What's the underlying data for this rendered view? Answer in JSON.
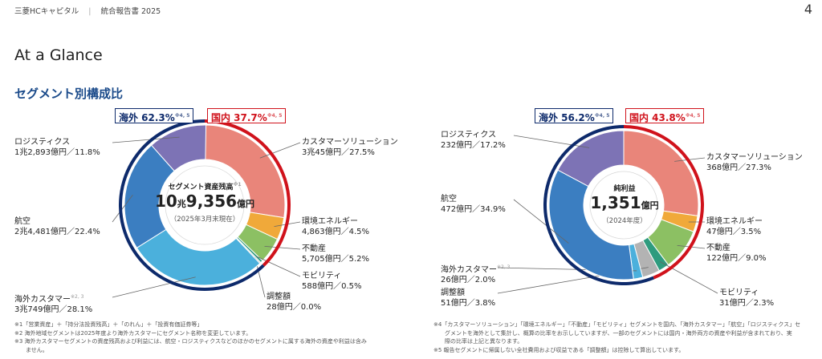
{
  "header": {
    "company": "三菱HCキャピタル",
    "report": "統合報告書 2025",
    "page": "4"
  },
  "page_title": "At a Glance",
  "section_title": "セグメント別構成比",
  "chart_data": [
    {
      "type": "pie",
      "title": "セグメント資産残高",
      "center_title_note": "※1",
      "center_value_main": "10",
      "center_value_unit1": "兆",
      "center_value_rest": "9,356",
      "center_value_unit2": "億円",
      "center_sub": "（2025年3月末現在）",
      "outer_ring": [
        {
          "name": "海外",
          "value": 62.3,
          "color": "#0d2a6b",
          "note": "※4, 5"
        },
        {
          "name": "国内",
          "value": 37.7,
          "color": "#d0121b",
          "note": "※4, 5"
        }
      ],
      "tag_overseas": "海外 62.3%",
      "tag_domestic": "国内 37.7%",
      "slices": [
        {
          "name": "カスタマーソリューション",
          "amount": "3兆45億円",
          "pct": 27.5,
          "pct_label": "27.5%",
          "color": "#e9857a"
        },
        {
          "name": "環境エネルギー",
          "amount": "4,863億円",
          "pct": 4.5,
          "pct_label": "4.5%",
          "color": "#f0a93a"
        },
        {
          "name": "不動産",
          "amount": "5,705億円",
          "pct": 5.2,
          "pct_label": "5.2%",
          "color": "#8cc063"
        },
        {
          "name": "モビリティ",
          "amount": "588億円",
          "pct": 0.5,
          "pct_label": "0.5%",
          "color": "#2e9b7e"
        },
        {
          "name": "調整額",
          "amount": "28億円",
          "pct": 0.0,
          "pct_label": "0.0%",
          "color": "#b3b3b3"
        },
        {
          "name": "海外カスタマー",
          "note": "※2, 3",
          "amount": "3兆749億円",
          "pct": 28.1,
          "pct_label": "28.1%",
          "color": "#4bb0dc"
        },
        {
          "name": "航空",
          "amount": "2兆4,481億円",
          "pct": 22.4,
          "pct_label": "22.4%",
          "color": "#3b7ec1"
        },
        {
          "name": "ロジスティクス",
          "amount": "1兆2,893億円",
          "pct": 11.8,
          "pct_label": "11.8%",
          "color": "#7d73b5"
        }
      ]
    },
    {
      "type": "pie",
      "title": "純利益",
      "center_value_main": "1,351",
      "center_value_unit2": "億円",
      "center_sub": "（2024年度）",
      "outer_ring": [
        {
          "name": "海外",
          "value": 56.2,
          "color": "#0d2a6b",
          "note": "※4, 5"
        },
        {
          "name": "国内",
          "value": 43.8,
          "color": "#d0121b",
          "note": "※4, 5"
        }
      ],
      "tag_overseas": "海外 56.2%",
      "tag_domestic": "国内 43.8%",
      "slices": [
        {
          "name": "カスタマーソリューション",
          "amount": "368億円",
          "pct": 27.3,
          "pct_label": "27.3%",
          "color": "#e9857a"
        },
        {
          "name": "環境エネルギー",
          "amount": "47億円",
          "pct": 3.5,
          "pct_label": "3.5%",
          "color": "#f0a93a"
        },
        {
          "name": "不動産",
          "amount": "122億円",
          "pct": 9.0,
          "pct_label": "9.0%",
          "color": "#8cc063"
        },
        {
          "name": "モビリティ",
          "amount": "31億円",
          "pct": 2.3,
          "pct_label": "2.3%",
          "color": "#2e9b7e"
        },
        {
          "name": "調整額",
          "amount": "51億円",
          "pct": 3.8,
          "pct_label": "3.8%",
          "color": "#b3b3b3"
        },
        {
          "name": "海外カスタマー",
          "note": "※2, 3",
          "amount": "26億円",
          "pct": 2.0,
          "pct_label": "2.0%",
          "color": "#4bb0dc"
        },
        {
          "name": "航空",
          "amount": "472億円",
          "pct": 34.9,
          "pct_label": "34.9%",
          "color": "#3b7ec1"
        },
        {
          "name": "ロジスティクス",
          "amount": "232億円",
          "pct": 17.2,
          "pct_label": "17.2%",
          "color": "#7d73b5"
        }
      ]
    }
  ],
  "notes_left": [
    "※1「営業資産」＋「持分法投資残高」＋「のれん」＋「投資有価証券等」",
    "※2 海外地域セグメントは2025年度より海外カスタマーにセグメント名称を変更しています。",
    "※3 海外カスタマーセグメントの資産残高および利益には、航空・ロジスティクスなどのほかのセグメントに属する海外の資産や利益は含み",
    "　　ません。"
  ],
  "notes_right": [
    "※4「カスタマーソリューション」「環境エネルギー」「不動産」「モビリティ」セグメントを国内、「海外カスタマー」「航空」「ロジスティクス」セ",
    "　　グメントを海外として集計し、概算の比率をお示ししていますが、一部のセグメントには国内・海外両方の資産や利益が含まれており、実",
    "　　際の比率は上記と異なります。",
    "※5 報告セグメントに帰属しない全社費用および収益である「調整額」は控除して算出しています。"
  ]
}
